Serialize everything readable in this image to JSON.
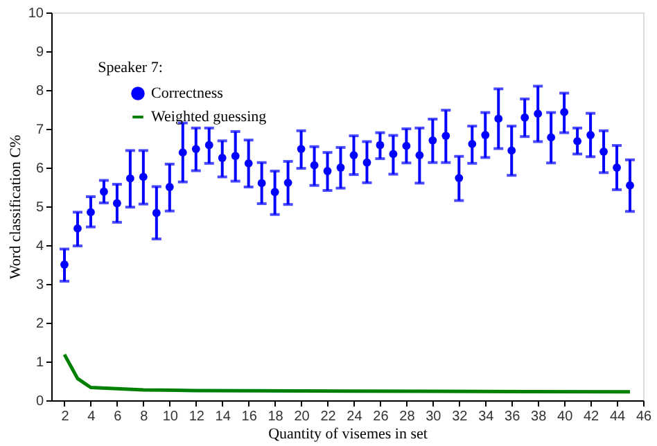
{
  "chart_data": {
    "type": "scatter",
    "title": "Speaker 7:",
    "xlabel": "Quantity of visemes in set",
    "ylabel": "Word classification C%",
    "x": [
      2,
      3,
      4,
      5,
      6,
      7,
      8,
      9,
      10,
      11,
      12,
      13,
      14,
      15,
      16,
      17,
      18,
      19,
      20,
      21,
      22,
      23,
      24,
      25,
      26,
      27,
      28,
      29,
      30,
      31,
      32,
      33,
      34,
      35,
      36,
      37,
      38,
      39,
      40,
      41,
      42,
      43,
      44,
      45
    ],
    "xlim": [
      1,
      46
    ],
    "xticks": [
      2,
      4,
      6,
      8,
      10,
      12,
      14,
      16,
      18,
      20,
      22,
      24,
      26,
      28,
      30,
      32,
      34,
      36,
      38,
      40,
      42,
      44,
      46
    ],
    "ylim": [
      0,
      10
    ],
    "yticks": [
      0,
      1,
      2,
      3,
      4,
      5,
      6,
      7,
      8,
      9,
      10
    ],
    "grid": false,
    "legend": "top left",
    "series": [
      {
        "name": "Correctness",
        "color": "#0000ff",
        "marker": "circle",
        "values": [
          3.5,
          4.43,
          4.85,
          5.38,
          5.08,
          5.72,
          5.76,
          4.83,
          5.5,
          6.39,
          6.48,
          6.58,
          6.25,
          6.3,
          6.11,
          5.6,
          5.37,
          5.61,
          6.48,
          6.06,
          5.91,
          6.0,
          6.32,
          6.13,
          6.58,
          6.35,
          6.56,
          6.32,
          6.7,
          6.82,
          5.73,
          6.61,
          6.84,
          7.26,
          6.44,
          7.29,
          7.39,
          6.78,
          7.43,
          6.68,
          6.84,
          6.41,
          6.0,
          5.54
        ],
        "errors": [
          [
            3.07,
            3.9
          ],
          [
            3.98,
            4.85
          ],
          [
            4.47,
            5.25
          ],
          [
            5.09,
            5.67
          ],
          [
            4.59,
            5.57
          ],
          [
            4.98,
            6.44
          ],
          [
            5.06,
            6.44
          ],
          [
            4.16,
            5.51
          ],
          [
            4.88,
            6.09
          ],
          [
            5.63,
            7.15
          ],
          [
            5.92,
            7.02
          ],
          [
            6.11,
            7.02
          ],
          [
            5.76,
            6.69
          ],
          [
            5.65,
            6.93
          ],
          [
            5.5,
            6.71
          ],
          [
            5.07,
            6.13
          ],
          [
            4.79,
            5.91
          ],
          [
            5.05,
            6.16
          ],
          [
            5.98,
            6.95
          ],
          [
            5.54,
            6.54
          ],
          [
            5.41,
            6.39
          ],
          [
            5.47,
            6.52
          ],
          [
            5.82,
            6.82
          ],
          [
            5.61,
            6.67
          ],
          [
            6.23,
            6.9
          ],
          [
            5.83,
            6.83
          ],
          [
            6.12,
            7.0
          ],
          [
            5.6,
            7.02
          ],
          [
            6.13,
            7.25
          ],
          [
            6.13,
            7.48
          ],
          [
            5.15,
            6.29
          ],
          [
            6.11,
            7.07
          ],
          [
            6.26,
            7.42
          ],
          [
            6.49,
            8.03
          ],
          [
            5.8,
            7.07
          ],
          [
            6.8,
            7.77
          ],
          [
            6.67,
            8.1
          ],
          [
            6.12,
            7.42
          ],
          [
            6.9,
            7.92
          ],
          [
            6.35,
            7.02
          ],
          [
            6.28,
            7.4
          ],
          [
            5.87,
            6.95
          ],
          [
            5.43,
            6.57
          ],
          [
            4.87,
            6.2
          ]
        ]
      },
      {
        "name": "Weighted guessing",
        "type": "line",
        "color": "#008000",
        "marker": "none",
        "line_style": "solid",
        "x": [
          2,
          3,
          4,
          6,
          8,
          12,
          20,
          30,
          45
        ],
        "values": [
          1.18,
          0.56,
          0.33,
          0.3,
          0.27,
          0.25,
          0.24,
          0.23,
          0.22
        ]
      }
    ]
  }
}
